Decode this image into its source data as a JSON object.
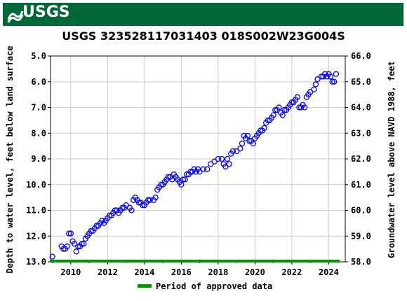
{
  "header": {
    "agency_logo_text": "USGS"
  },
  "chart_data": {
    "type": "scatter",
    "title": "USGS 323528117031403 018S002W23G004S",
    "ylabel_left": "Depth to water level, feet below land surface",
    "ylabel_right": "Groundwater level above NAVD 1988, feet",
    "ylim_left": [
      13.0,
      5.0
    ],
    "ylim_right": [
      58.0,
      66.0
    ],
    "xlim": [
      2008.9,
      2024.9
    ],
    "x_ticks": [
      "2010",
      "2012",
      "2014",
      "2016",
      "2018",
      "2020",
      "2022",
      "2024"
    ],
    "y_ticks_left": [
      "5.0",
      "6.0",
      "7.0",
      "8.0",
      "9.0",
      "10.0",
      "11.0",
      "12.0",
      "13.0"
    ],
    "y_ticks_right": [
      "66.0",
      "65.0",
      "64.0",
      "63.0",
      "62.0",
      "61.0",
      "60.0",
      "59.0",
      "58.0"
    ],
    "grid": true,
    "marker_color": "#0000ff",
    "legend_color": "#009900",
    "legend": [
      "Period of approved data"
    ],
    "approved_period": [
      2008.9,
      2024.6
    ],
    "series": [
      {
        "x": [
          2009.0,
          2009.5,
          2009.6,
          2009.7,
          2009.8,
          2009.9,
          2010.0,
          2010.1,
          2010.2,
          2010.3,
          2010.4,
          2010.5,
          2010.6,
          2010.7,
          2010.8,
          2010.9,
          2011.0,
          2011.1,
          2011.2,
          2011.3,
          2011.4,
          2011.5,
          2011.6,
          2011.7,
          2011.8,
          2011.9,
          2012.0,
          2012.1,
          2012.2,
          2012.3,
          2012.4,
          2012.5,
          2012.6,
          2012.7,
          2012.8,
          2012.9,
          2013.0,
          2013.2,
          2013.3,
          2013.4,
          2013.5,
          2013.6,
          2013.7,
          2013.8,
          2013.9,
          2014.0,
          2014.1,
          2014.2,
          2014.3,
          2014.5,
          2014.6,
          2014.7,
          2014.8,
          2014.9,
          2015.0,
          2015.1,
          2015.2,
          2015.3,
          2015.4,
          2015.5,
          2015.6,
          2015.7,
          2015.8,
          2015.9,
          2016.0,
          2016.1,
          2016.2,
          2016.3,
          2016.4,
          2016.5,
          2016.6,
          2016.7,
          2016.8,
          2016.9,
          2017.0,
          2017.2,
          2017.4,
          2017.6,
          2017.8,
          2018.0,
          2018.2,
          2018.3,
          2018.4,
          2018.5,
          2018.6,
          2018.7,
          2018.8,
          2019.0,
          2019.2,
          2019.3,
          2019.4,
          2019.5,
          2019.6,
          2019.7,
          2019.8,
          2019.9,
          2020.0,
          2020.1,
          2020.2,
          2020.3,
          2020.4,
          2020.5,
          2020.6,
          2020.7,
          2020.8,
          2020.9,
          2021.0,
          2021.1,
          2021.2,
          2021.3,
          2021.4,
          2021.5,
          2021.6,
          2021.7,
          2021.8,
          2021.9,
          2022.0,
          2022.1,
          2022.2,
          2022.3,
          2022.4,
          2022.5,
          2022.6,
          2022.7,
          2022.8,
          2022.9,
          2023.0,
          2023.2,
          2023.3,
          2023.4,
          2023.6,
          2023.7,
          2023.8,
          2023.9,
          2024.0,
          2024.1,
          2024.2,
          2024.3,
          2024.4
        ],
        "y": [
          12.8,
          12.4,
          12.5,
          12.5,
          12.4,
          11.9,
          11.9,
          12.2,
          12.3,
          12.6,
          12.4,
          12.4,
          12.3,
          12.3,
          12.1,
          12.0,
          11.9,
          11.8,
          11.8,
          11.7,
          11.6,
          11.6,
          11.5,
          11.4,
          11.5,
          11.4,
          11.3,
          11.2,
          11.2,
          11.1,
          11.0,
          11.0,
          11.1,
          11.0,
          10.9,
          10.9,
          10.8,
          10.9,
          11.0,
          10.6,
          10.5,
          10.6,
          10.7,
          10.7,
          10.8,
          10.8,
          10.7,
          10.6,
          10.6,
          10.6,
          10.5,
          10.2,
          10.1,
          10.0,
          10.0,
          9.9,
          9.8,
          9.7,
          9.7,
          9.8,
          9.6,
          9.7,
          9.8,
          9.9,
          10.0,
          9.8,
          9.8,
          9.6,
          9.6,
          9.5,
          9.5,
          9.4,
          9.5,
          9.4,
          9.5,
          9.4,
          9.4,
          9.2,
          9.1,
          9.0,
          9.0,
          9.2,
          9.3,
          9.0,
          9.2,
          8.8,
          8.7,
          8.7,
          8.6,
          8.4,
          8.1,
          8.2,
          8.1,
          8.3,
          8.3,
          8.4,
          8.2,
          8.1,
          8.0,
          7.9,
          7.9,
          7.8,
          7.6,
          7.5,
          7.5,
          7.4,
          7.3,
          7.1,
          7.1,
          7.0,
          7.2,
          7.3,
          7.1,
          7.1,
          7.0,
          6.9,
          6.8,
          6.8,
          6.7,
          6.6,
          7.0,
          7.0,
          6.9,
          7.0,
          6.6,
          6.5,
          6.4,
          6.3,
          6.1,
          5.9,
          5.8,
          5.8,
          5.7,
          5.8,
          5.7,
          5.8,
          6.0,
          6.0,
          5.7
        ]
      }
    ]
  }
}
